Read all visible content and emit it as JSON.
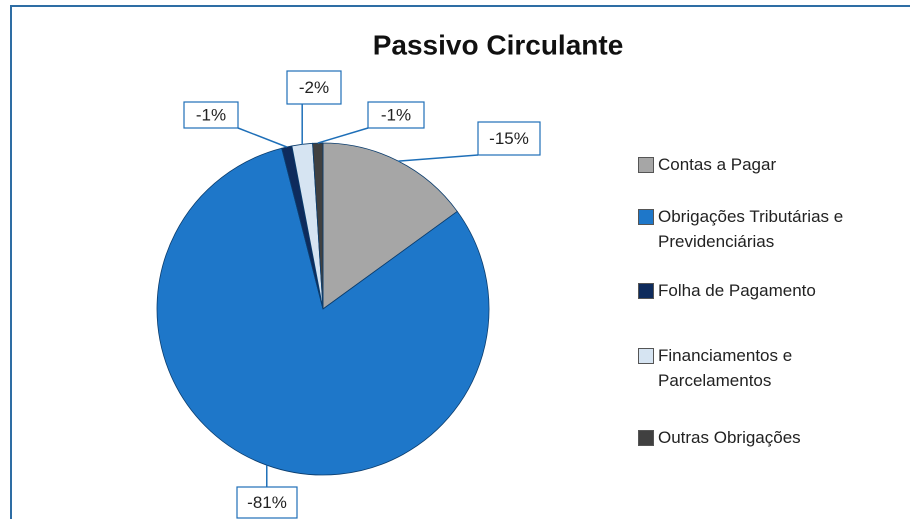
{
  "chart_data": {
    "type": "pie",
    "title": "Passivo Circulante",
    "categories": [
      "Contas a Pagar",
      "Obrigações Tributárias e Previdenciárias",
      "Folha de Pagamento",
      "Financiamentos e Parcelamentos",
      "Outras Obrigações"
    ],
    "values": [
      -15,
      -81,
      -1,
      -2,
      -1
    ],
    "value_labels": [
      "-15%",
      "-81%",
      "-1%",
      "-2%",
      "-1%"
    ],
    "colors": [
      "#a6a6a6",
      "#1e77c9",
      "#0e2b5c",
      "#d6e4f2",
      "#404040"
    ],
    "legend": "right"
  }
}
